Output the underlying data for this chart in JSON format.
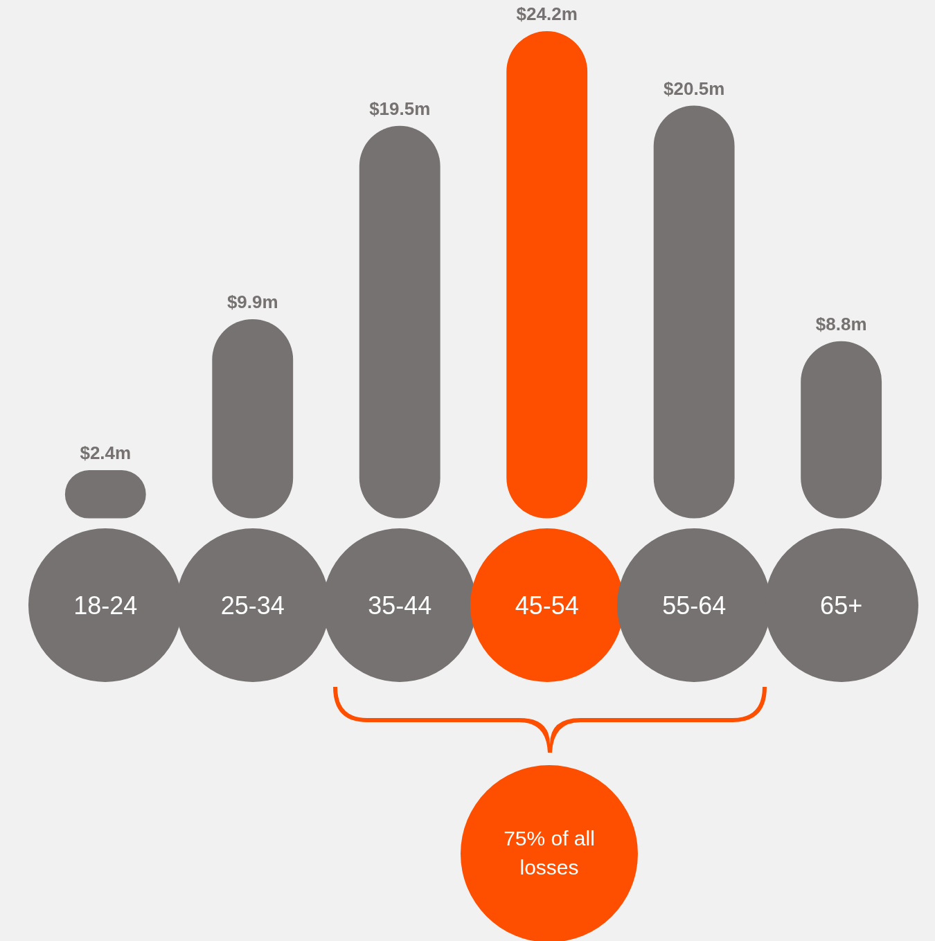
{
  "chart_data": {
    "type": "bar",
    "categories": [
      "18-24",
      "25-34",
      "35-44",
      "45-54",
      "55-64",
      "65+"
    ],
    "values": [
      2.4,
      9.9,
      19.5,
      24.2,
      20.5,
      8.8
    ],
    "colors": [
      "#767271",
      "#767271",
      "#767271",
      "#fe4e00",
      "#767271",
      "#767271"
    ],
    "value_labels": [
      "$2.4m",
      "$9.9m",
      "$19.5m",
      "$24.2m",
      "$20.5m",
      "$8.8m"
    ],
    "annotations": [
      "75% of all losses"
    ]
  }
}
